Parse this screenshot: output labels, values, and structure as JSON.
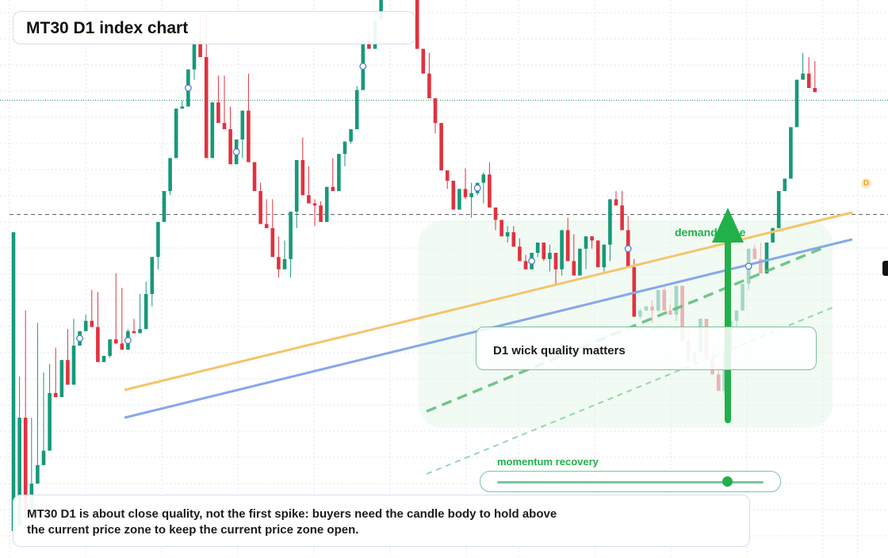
{
  "title": "MT30 D1 index chart",
  "chart_data": {
    "type": "candlestick",
    "title": "MT30 D1 index chart",
    "up_color": "#16997a",
    "down_color": "#e0323f",
    "ohlc": [
      [
        5,
        150,
        8,
        150
      ],
      [
        8,
        80,
        8,
        60
      ],
      [
        60,
        80,
        112,
        12
      ],
      [
        12,
        22,
        60,
        28
      ],
      [
        28,
        32,
        106,
        37
      ],
      [
        37,
        41,
        82,
        44
      ],
      [
        44,
        60,
        86,
        72
      ],
      [
        72,
        70,
        94,
        70
      ],
      [
        70,
        73,
        77,
        88
      ],
      [
        88,
        98,
        103,
        76
      ],
      [
        76,
        84,
        108,
        95
      ],
      [
        95,
        97,
        100,
        102
      ],
      [
        102,
        102,
        110,
        107
      ],
      [
        107,
        118,
        122,
        104
      ],
      [
        104,
        105,
        121,
        87
      ],
      [
        87,
        89,
        88,
        90
      ],
      [
        90,
        89,
        93,
        98
      ],
      [
        98,
        120,
        130,
        96
      ],
      [
        96,
        119,
        123,
        93
      ],
      [
        93,
        100,
        103,
        102
      ],
      [
        102,
        108,
        103,
        101
      ],
      [
        101,
        116,
        120,
        103
      ],
      [
        103,
        115,
        126,
        120
      ],
      [
        120,
        128,
        114,
        138
      ],
      [
        138,
        144,
        132,
        155
      ],
      [
        155,
        157,
        160,
        170
      ],
      [
        170,
        177,
        168,
        186
      ],
      [
        186,
        191,
        198,
        210
      ],
      [
        210,
        211,
        214,
        211
      ],
      [
        211,
        214,
        216,
        229
      ],
      [
        229,
        224,
        245,
        243
      ],
      [
        243,
        255,
        256,
        235
      ],
      [
        235,
        256,
        252,
        186
      ],
      [
        186,
        201,
        199,
        213
      ],
      [
        213,
        226,
        222,
        203
      ],
      [
        203,
        216,
        226,
        200
      ],
      [
        200,
        211,
        208,
        183
      ],
      [
        183,
        188,
        187,
        195
      ],
      [
        195,
        201,
        186,
        209
      ],
      [
        209,
        210,
        227,
        184
      ],
      [
        184,
        174,
        181,
        170
      ],
      [
        170,
        174,
        172,
        154
      ],
      [
        154,
        166,
        158,
        152
      ],
      [
        152,
        166,
        150,
        138
      ],
      [
        138,
        128,
        148,
        132
      ],
      [
        132,
        142,
        146,
        137
      ],
      [
        137,
        128,
        137,
        160
      ],
      [
        160,
        164,
        152,
        185
      ],
      [
        185,
        184,
        196,
        168
      ],
      [
        168,
        182,
        168,
        164
      ],
      [
        164,
        166,
        153,
        163
      ],
      [
        163,
        165,
        161,
        155
      ],
      [
        155,
        158,
        162,
        172
      ],
      [
        172,
        186,
        183,
        170
      ],
      [
        170,
        184,
        175,
        188
      ],
      [
        188,
        192,
        182,
        194
      ],
      [
        194,
        196,
        193,
        200
      ],
      [
        200,
        209,
        221,
        219
      ],
      [
        219,
        226,
        219,
        242
      ],
      [
        242,
        250,
        245,
        239
      ],
      [
        239,
        247,
        253,
        253
      ],
      [
        253,
        259,
        267,
        279
      ],
      [
        279,
        289,
        287,
        281
      ],
      [
        281,
        278,
        274,
        282
      ],
      [
        282,
        297,
        293,
        298
      ],
      [
        298,
        316,
        304,
        306
      ],
      [
        306,
        312,
        302,
        269
      ],
      [
        269,
        275,
        266,
        239
      ],
      [
        239,
        237,
        229,
        227
      ],
      [
        227,
        237,
        225,
        215
      ],
      [
        215,
        215,
        198,
        203
      ],
      [
        203,
        203,
        189,
        180
      ],
      [
        180,
        172,
        171,
        175
      ],
      [
        175,
        175,
        173,
        161
      ],
      [
        161,
        170,
        163,
        171
      ],
      [
        171,
        181,
        166,
        167
      ],
      [
        167,
        157,
        174,
        169
      ],
      [
        169,
        168,
        171,
        174
      ],
      [
        174,
        164,
        179,
        178
      ],
      [
        178,
        184,
        173,
        162
      ],
      [
        162,
        151,
        157,
        156
      ],
      [
        156,
        150,
        153,
        148
      ],
      [
        148,
        153,
        145,
        150
      ],
      [
        150,
        153,
        145,
        143
      ],
      [
        143,
        147,
        141,
        136
      ],
      [
        136,
        139,
        133,
        132
      ],
      [
        132,
        138,
        133,
        140
      ],
      [
        140,
        138,
        138,
        145
      ],
      [
        145,
        136,
        140,
        137
      ],
      [
        137,
        144,
        131,
        140
      ],
      [
        140,
        124,
        139,
        132
      ],
      [
        132,
        129,
        129,
        151
      ],
      [
        151,
        157,
        152,
        136
      ],
      [
        136,
        149,
        133,
        129
      ],
      [
        129,
        130,
        137,
        142
      ],
      [
        142,
        140,
        132,
        148
      ],
      [
        148,
        148,
        142,
        146
      ],
      [
        146,
        137,
        142,
        133
      ],
      [
        133,
        138,
        131,
        144
      ],
      [
        144,
        153,
        136,
        166
      ],
      [
        166,
        166,
        170,
        163
      ],
      [
        163,
        170,
        158,
        151
      ],
      [
        151,
        149,
        158,
        133
      ],
      [
        133,
        137,
        129,
        109
      ],
      [
        109,
        113,
        108,
        112
      ],
      [
        112,
        113,
        113,
        114
      ],
      [
        114,
        106,
        117,
        112
      ],
      [
        112,
        118,
        111,
        122
      ],
      [
        122,
        115,
        124,
        112
      ],
      [
        112,
        115,
        114,
        110
      ],
      [
        110,
        118,
        107,
        124
      ],
      [
        124,
        114,
        122,
        97
      ],
      [
        97,
        103,
        88,
        87
      ],
      [
        87,
        90,
        91,
        92
      ],
      [
        92,
        97,
        94,
        108
      ],
      [
        108,
        95,
        103,
        89
      ],
      [
        89,
        93,
        87,
        81
      ],
      [
        81,
        86,
        82,
        73
      ],
      [
        73,
        71,
        72,
        92
      ],
      [
        92,
        97,
        95,
        107
      ],
      [
        107,
        106,
        104,
        112
      ],
      [
        112,
        115,
        112,
        125
      ],
      [
        125,
        122,
        126,
        142
      ],
      [
        142,
        142,
        144,
        137
      ],
      [
        137,
        145,
        138,
        130
      ],
      [
        130,
        134,
        132,
        145
      ],
      [
        145,
        150,
        146,
        152
      ],
      [
        152,
        164,
        159,
        170
      ],
      [
        170,
        173,
        172,
        176
      ],
      [
        176,
        200,
        189,
        201
      ],
      [
        201,
        217,
        207,
        224
      ],
      [
        224,
        237,
        231,
        227
      ],
      [
        227,
        226,
        235,
        220
      ],
      [
        220,
        222,
        233,
        218
      ]
    ],
    "price_lines": [
      {
        "name": "current price zone",
        "value": 158.6
      },
      {
        "name": "",
        "value": 214
      }
    ],
    "markers": [
      {
        "index": 11,
        "label": "C"
      },
      {
        "index": 19,
        "label": "C"
      },
      {
        "index": 29,
        "label": "C"
      },
      {
        "index": 37,
        "label": "C"
      },
      {
        "index": 58,
        "label": "C"
      },
      {
        "index": 77,
        "label": "C"
      },
      {
        "index": 86,
        "label": "C"
      },
      {
        "index": 102,
        "label": "C"
      },
      {
        "index": 122,
        "label": "C"
      }
    ],
    "annotations": {
      "demand_zone": "demand zone",
      "note_box": "D1 wick quality matters",
      "momentum": "momentum recovery",
      "momentum_level": 0.86,
      "last_marker": "D"
    },
    "colors": {
      "trend_orange": "#f5c46a",
      "trend_blue": "#86a8ea",
      "accent_green": "#22b04a",
      "zone_fill": "#e6f5e9",
      "dot_line": "#2f8d65"
    }
  },
  "bubble": {
    "text": "MT30 D1 is about close quality, not the first spike: buyers need the candle body to hold above the current price zone to keep the current price zone open."
  }
}
